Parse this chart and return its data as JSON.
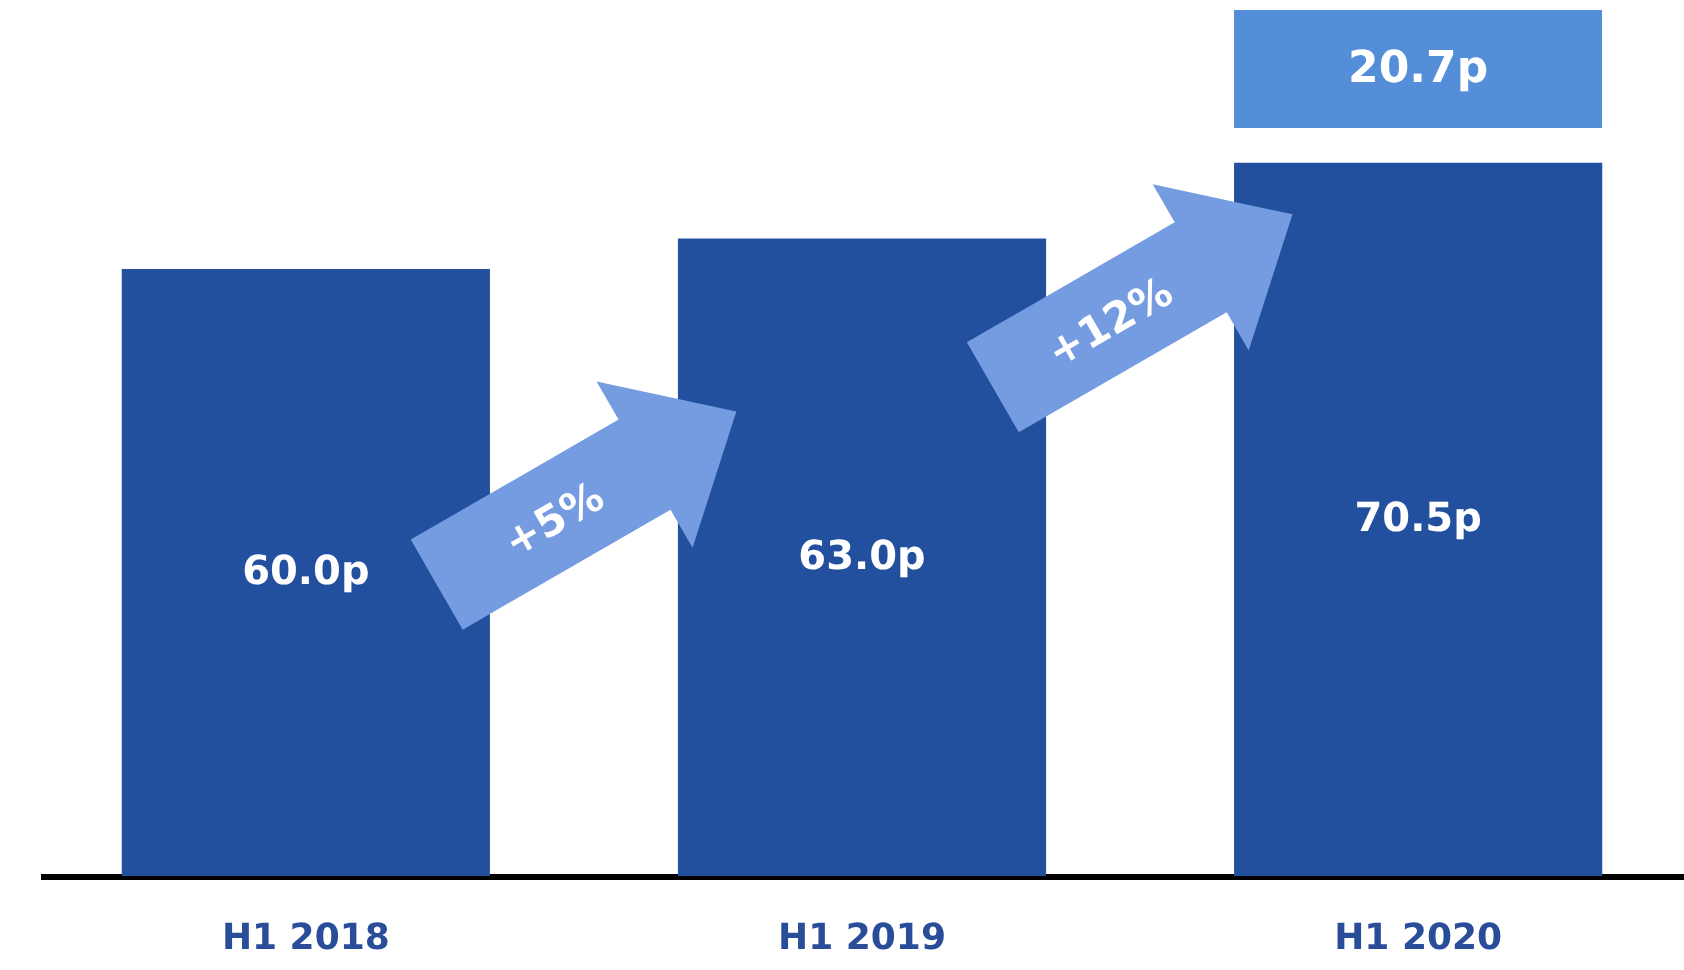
{
  "chart_data": {
    "type": "bar",
    "categories": [
      "H1 2018",
      "H1 2019",
      "H1 2020"
    ],
    "values": [
      60.0,
      63.0,
      70.5
    ],
    "value_labels": [
      "60.0p",
      "63.0p",
      "70.5p"
    ],
    "color": "#22509f",
    "ylim": [
      0,
      85
    ],
    "annotations": [
      "+5%",
      "+12%",
      "20.7p"
    ]
  }
}
